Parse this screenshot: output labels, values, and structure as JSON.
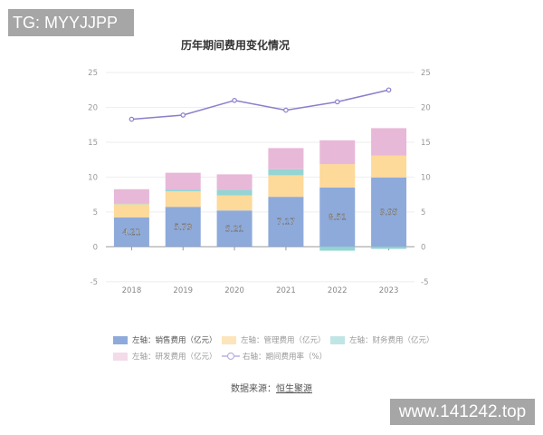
{
  "watermarks": {
    "top_left": "TG: MYYJJPP",
    "bottom_right": "www.141242.top"
  },
  "source": {
    "label": "数据来源：",
    "link": "恒生聚源"
  },
  "chart_data": {
    "type": "bar",
    "title": "历年期间费用变化情况",
    "categories": [
      "2018",
      "2019",
      "2020",
      "2021",
      "2022",
      "2023"
    ],
    "ylim": [
      -5,
      25
    ],
    "y2lim": [
      -5,
      25
    ],
    "yticks": [
      "-5",
      "0",
      "5",
      "10",
      "15",
      "20",
      "25"
    ],
    "grid": true,
    "legend_position": "bottom",
    "series": [
      {
        "name": "左轴：销售费用（亿元）",
        "type": "bar",
        "stack": true,
        "color": "#8eaadb",
        "values": [
          4.21,
          5.73,
          5.21,
          7.17,
          8.51,
          9.95
        ],
        "labels": [
          "4.21",
          "5.73",
          "5.21",
          "7.17",
          "8.51",
          "9.95"
        ]
      },
      {
        "name": "左轴：管理费用（亿元）",
        "type": "bar",
        "stack": true,
        "color": "#fdd99a",
        "values": [
          1.9,
          2.24,
          2.15,
          3.09,
          3.35,
          3.12
        ]
      },
      {
        "name": "左轴：财务费用（亿元）",
        "type": "bar",
        "stack": true,
        "color": "#94d5d3",
        "values": [
          0.05,
          0.25,
          0.82,
          0.87,
          -0.56,
          -0.3
        ]
      },
      {
        "name": "左轴：研发费用（亿元）",
        "type": "bar",
        "stack": true,
        "color": "#e8b8d8",
        "values": [
          2.1,
          2.4,
          2.21,
          3.03,
          3.42,
          3.95
        ]
      },
      {
        "name": "右轴：期间费用率（%）",
        "type": "line",
        "axis": "right",
        "color": "#8a7fcc",
        "values": [
          18.3,
          18.9,
          21.0,
          19.6,
          20.8,
          22.5
        ]
      }
    ]
  }
}
